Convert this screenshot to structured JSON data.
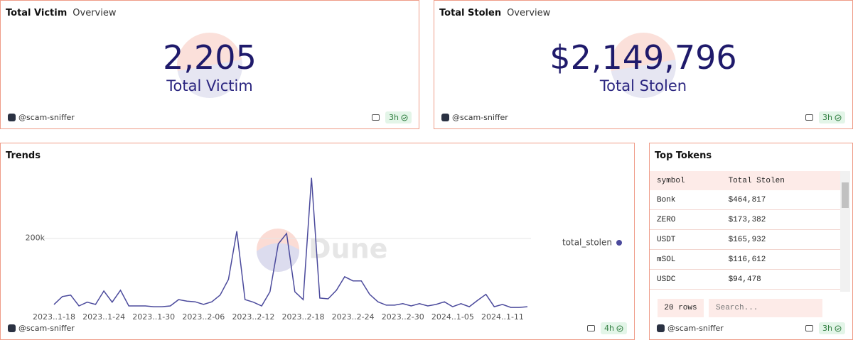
{
  "panels": [
    {
      "title": "Total Victim",
      "tab": "Overview",
      "value": "2,205",
      "label": "Total Victim",
      "author": "@scam-sniffer",
      "age": "3h"
    },
    {
      "title": "Total Stolen",
      "tab": "Overview",
      "value": "$2,149,796",
      "label": "Total Stolen",
      "author": "@scam-sniffer",
      "age": "3h"
    }
  ],
  "trends": {
    "title": "Trends",
    "watermark": "Dune",
    "author": "@scam-sniffer",
    "age": "4h"
  },
  "chart_data": {
    "type": "line",
    "categories": [
      "2023..1-18",
      null,
      null,
      null,
      null,
      null,
      "2023..1-24",
      null,
      null,
      null,
      null,
      null,
      "2023..1-30",
      null,
      null,
      null,
      null,
      null,
      "2023..2-06",
      null,
      null,
      null,
      null,
      null,
      "2023..2-12",
      null,
      null,
      null,
      null,
      null,
      "2023..2-18",
      null,
      null,
      null,
      null,
      null,
      "2023..2-24",
      null,
      null,
      null,
      null,
      null,
      "2023..2-30",
      null,
      null,
      null,
      null,
      null,
      "2024..1-05",
      null,
      null,
      null,
      null,
      null,
      "2024..1-11",
      null,
      null,
      null
    ],
    "series": [
      {
        "name": "total_stolen",
        "color": "#4b4a9c",
        "values": [
          23000,
          44000,
          48000,
          19000,
          29000,
          23000,
          59000,
          29000,
          61000,
          19000,
          19000,
          19000,
          17000,
          17000,
          19000,
          36000,
          32000,
          30000,
          23000,
          30000,
          48000,
          90000,
          219000,
          36000,
          29000,
          19000,
          57000,
          185000,
          213000,
          57000,
          36000,
          362000,
          40000,
          38000,
          61000,
          97000,
          86000,
          86000,
          50000,
          30000,
          21000,
          21000,
          25000,
          19000,
          25000,
          19000,
          23000,
          30000,
          17000,
          25000,
          17000,
          34000,
          50000,
          17000,
          23000,
          15000,
          15000,
          17000
        ]
      }
    ],
    "ylim": [
      0,
      380000
    ],
    "yticks": [
      {
        "value": 200000,
        "label": "200k"
      }
    ],
    "grid": true,
    "legend": "right"
  },
  "top_tokens": {
    "title": "Top Tokens",
    "columns": [
      "symbol",
      "Total Stolen"
    ],
    "rows": [
      [
        "Bonk",
        "$464,817"
      ],
      [
        "ZERO",
        "$173,382"
      ],
      [
        "USDT",
        "$165,932"
      ],
      [
        "mSOL",
        "$116,612"
      ],
      [
        "USDC",
        "$94,478"
      ]
    ],
    "row_count": "20 rows",
    "search_placeholder": "Search...",
    "author": "@scam-sniffer",
    "age": "3h"
  }
}
